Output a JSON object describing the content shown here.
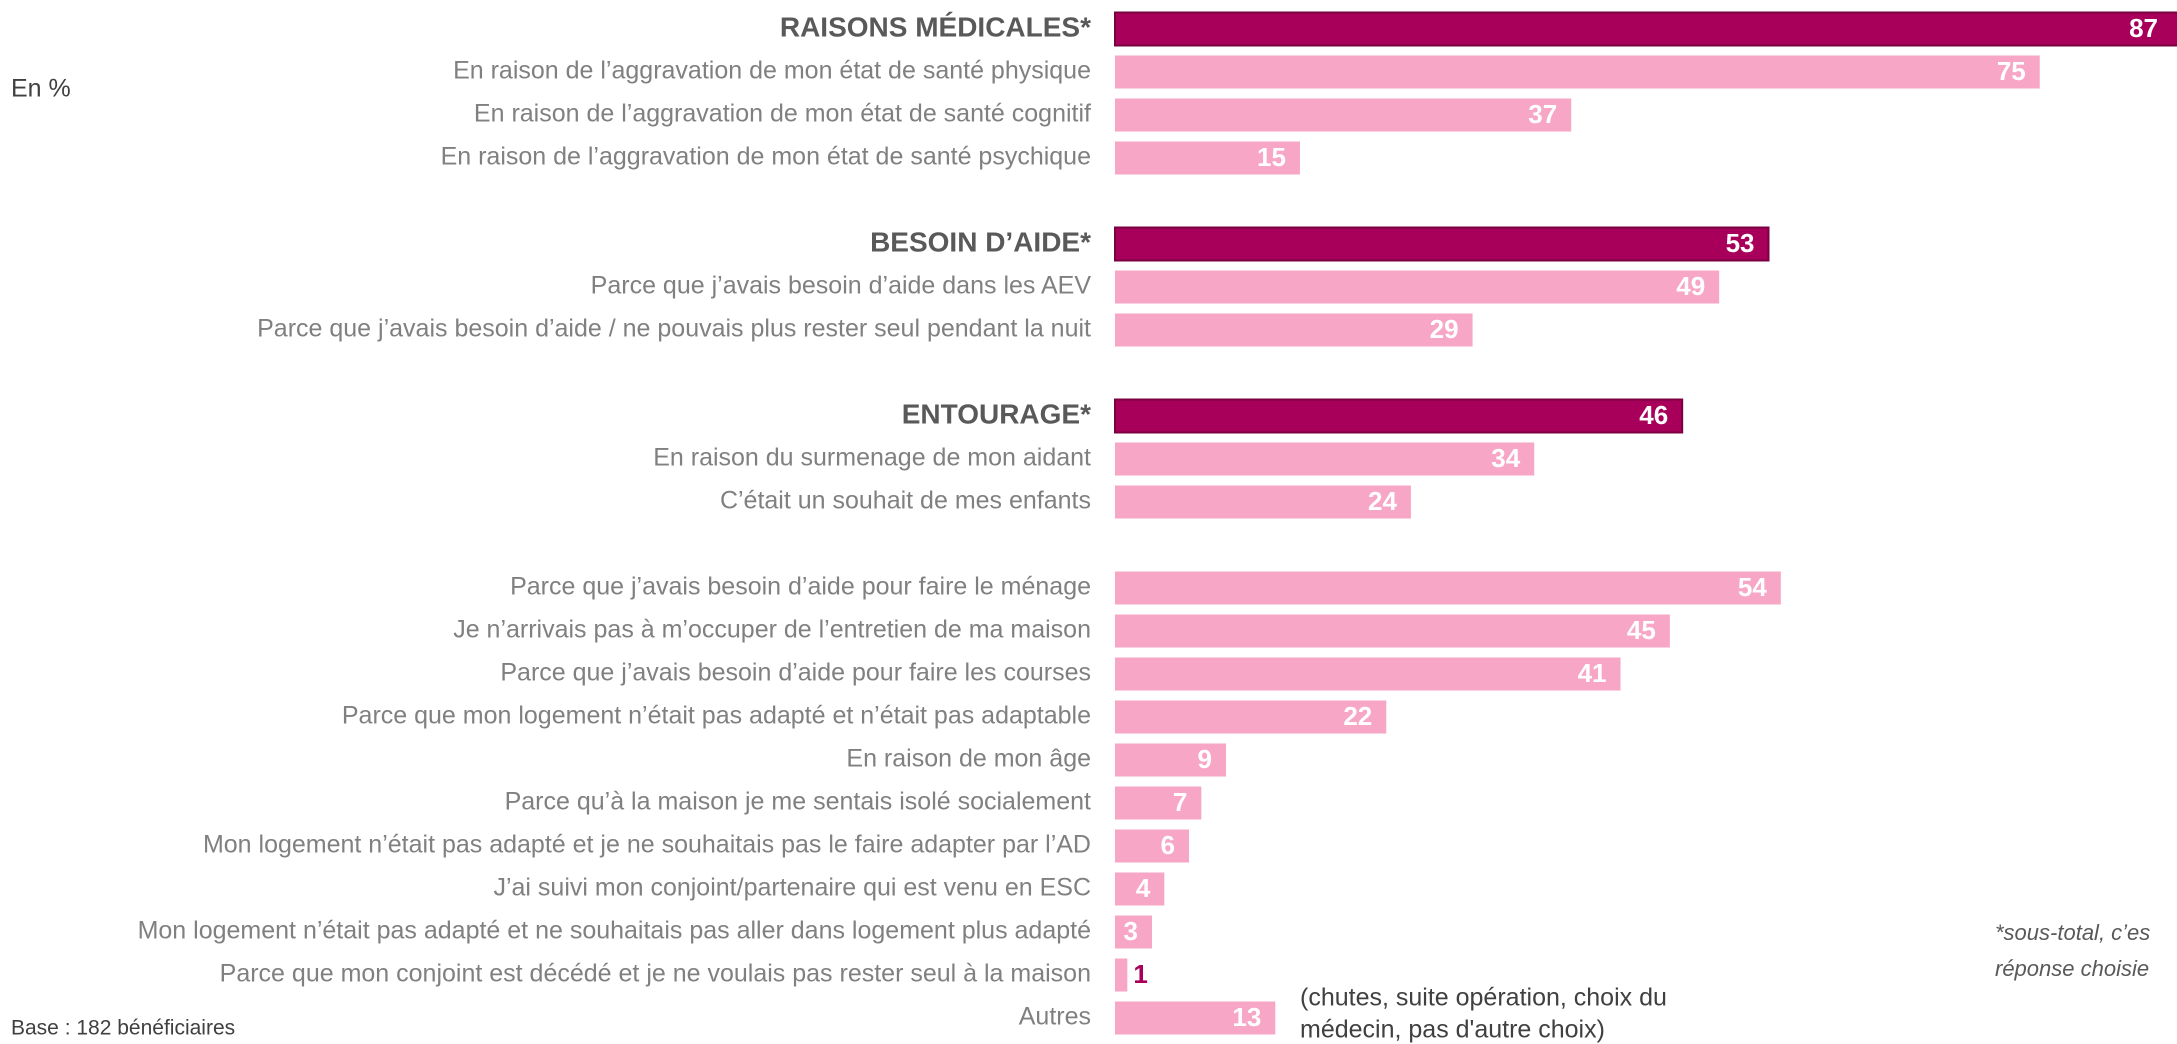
{
  "chart_data": {
    "type": "bar",
    "orientation": "horizontal",
    "unit_label": "En %",
    "categories": [
      "RAISONS MÉDICALES*",
      "En raison de l’aggravation de mon état de santé physique",
      "En raison de l’aggravation de mon état de santé cognitif",
      "En raison de l’aggravation de mon état de santé psychique",
      "BESOIN D’AIDE*",
      "Parce que j’avais besoin d’aide dans les AEV",
      "Parce que j’avais besoin d’aide / ne pouvais plus rester seul pendant la nuit",
      "ENTOURAGE*",
      "En raison du surmenage de mon aidant",
      "C’était un souhait de mes enfants",
      "Parce que j’avais besoin d’aide pour faire le ménage",
      "Je n’arrivais pas à m’occuper de l’entretien de ma maison",
      "Parce que j’avais besoin d’aide pour faire les courses",
      "Parce que mon logement n’était pas adapté et n’était pas adaptable",
      "En raison de mon âge",
      "Parce qu’à la maison je me sentais isolé socialement",
      "Mon logement n’était pas adapté et je ne souhaitais pas le faire adapter par l’AD",
      "J’ai suivi mon conjoint/partenaire qui est venu en ESC",
      "Mon logement n’était pas adapté et ne souhaitais pas aller dans logement plus adapté",
      "Parce que mon conjoint est décédé et je ne voulais pas rester seul à la maison",
      "Autres"
    ],
    "values": [
      87,
      75,
      37,
      15,
      53,
      49,
      29,
      46,
      34,
      24,
      54,
      45,
      41,
      22,
      9,
      7,
      6,
      4,
      3,
      1,
      13
    ],
    "colors": [
      "#a8005a",
      "#f7a6c6",
      "#f7a6c6",
      "#f7a6c6",
      "#a8005a",
      "#f7a6c6",
      "#f7a6c6",
      "#a8005a",
      "#f7a6c6",
      "#f7a6c6",
      "#f7a6c6",
      "#f7a6c6",
      "#f7a6c6",
      "#f7a6c6",
      "#f7a6c6",
      "#f7a6c6",
      "#f7a6c6",
      "#f7a6c6",
      "#f7a6c6",
      "#f7a6c6",
      "#f7a6c6"
    ],
    "annotation_lines": [
      "(chutes, suite opération, choix du",
      "médecin, pas d'autre choix)"
    ],
    "footnote_lines": [
      "*sous-total, c’es",
      "réponse choisie"
    ],
    "base_note": "Base : 182 bénéficiaires"
  }
}
